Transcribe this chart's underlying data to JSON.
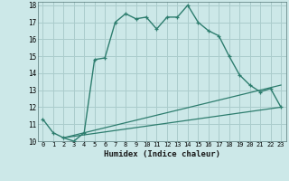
{
  "xlabel": "Humidex (Indice chaleur)",
  "xlim": [
    -0.5,
    23.5
  ],
  "ylim": [
    10,
    18.2
  ],
  "xticks": [
    0,
    1,
    2,
    3,
    4,
    5,
    6,
    7,
    8,
    9,
    10,
    11,
    12,
    13,
    14,
    15,
    16,
    17,
    18,
    19,
    20,
    21,
    22,
    23
  ],
  "yticks": [
    10,
    11,
    12,
    13,
    14,
    15,
    16,
    17,
    18
  ],
  "bg_color": "#cce8e8",
  "line_color": "#2d7d6e",
  "grid_color": "#aacccc",
  "series1_x": [
    0,
    1,
    2,
    3,
    4,
    5,
    6,
    7,
    8,
    9,
    10,
    11,
    12,
    13,
    14,
    15,
    16,
    17,
    18,
    19,
    20,
    21,
    22,
    23
  ],
  "series1_y": [
    11.3,
    10.5,
    10.2,
    10.0,
    10.5,
    14.8,
    14.9,
    17.0,
    17.5,
    17.2,
    17.3,
    16.6,
    17.3,
    17.3,
    18.0,
    17.0,
    16.5,
    16.2,
    15.0,
    13.9,
    13.3,
    12.9,
    13.1,
    12.0
  ],
  "series2_x": [
    2,
    4,
    23
  ],
  "series2_y": [
    10.2,
    10.5,
    12.0
  ]
}
